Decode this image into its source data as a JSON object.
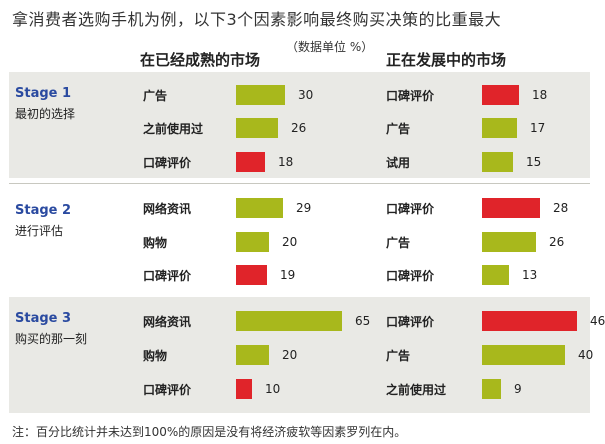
{
  "title": "拿消费者选购手机为例，以下3个因素影响最终购买决策的比重最大",
  "unit_note": "（数据单位 %）",
  "footnote": "注：百分比统计并未达到100%的原因是没有将经济疲软等因素罗列在内。",
  "colors": {
    "green": "#a8b81c",
    "red": "#e0242a",
    "shade": "#e9e9e5",
    "stage_blue": "#2a4aa0"
  },
  "chart_data": {
    "type": "bar",
    "columns": [
      "在已经成熟的市场",
      "正在发展中的市场"
    ],
    "xlim": [
      0,
      65
    ],
    "stages": [
      {
        "label": "Stage 1",
        "sub": "最初的选择",
        "mature": [
          {
            "factor": "广告",
            "value": 30,
            "color": "green"
          },
          {
            "factor": "之前使用过",
            "value": 26,
            "color": "green"
          },
          {
            "factor": "口碑评价",
            "value": 18,
            "color": "red"
          }
        ],
        "developing": [
          {
            "factor": "口碑评价",
            "value": 18,
            "color": "red"
          },
          {
            "factor": "广告",
            "value": 17,
            "color": "green"
          },
          {
            "factor": "试用",
            "value": 15,
            "color": "green"
          }
        ]
      },
      {
        "label": "Stage 2",
        "sub": "进行评估",
        "mature": [
          {
            "factor": "网络资讯",
            "value": 29,
            "color": "green"
          },
          {
            "factor": "购物",
            "value": 20,
            "color": "green"
          },
          {
            "factor": "口碑评价",
            "value": 19,
            "color": "red"
          }
        ],
        "developing": [
          {
            "factor": "口碑评价",
            "value": 28,
            "color": "red"
          },
          {
            "factor": "广告",
            "value": 26,
            "color": "green"
          },
          {
            "factor": "口碑评价",
            "value": 13,
            "color": "green"
          }
        ]
      },
      {
        "label": "Stage 3",
        "sub": "购买的那一刻",
        "mature": [
          {
            "factor": "网络资讯",
            "value": 65,
            "color": "green"
          },
          {
            "factor": "购物",
            "value": 20,
            "color": "green"
          },
          {
            "factor": "口碑评价",
            "value": 10,
            "color": "red"
          }
        ],
        "developing": [
          {
            "factor": "口碑评价",
            "value": 46,
            "color": "red"
          },
          {
            "factor": "广告",
            "value": 40,
            "color": "green"
          },
          {
            "factor": "之前使用过",
            "value": 9,
            "color": "green"
          }
        ]
      }
    ]
  }
}
